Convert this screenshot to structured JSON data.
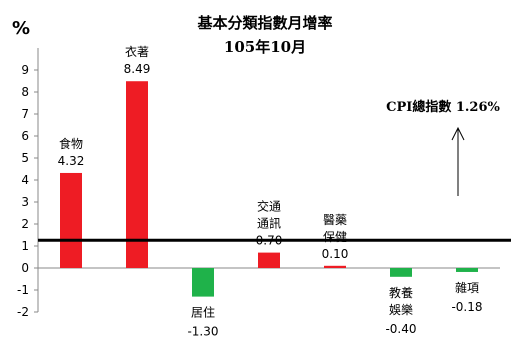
{
  "chart_data": {
    "type": "bar",
    "title": "基本分類指數月增率",
    "subtitle": "105年10月",
    "ylabel": "%",
    "ylim": [
      -2,
      10
    ],
    "yticks": [
      "-2",
      "-1",
      "0",
      "1",
      "2",
      "3",
      "4",
      "5",
      "6",
      "7",
      "8",
      "9"
    ],
    "categories": [
      {
        "lines": [
          "食物"
        ],
        "value": 4.32,
        "value_label": "4.32",
        "color": "#ee1c24"
      },
      {
        "lines": [
          "衣著"
        ],
        "value": 8.49,
        "value_label": "8.49",
        "color": "#ee1c24"
      },
      {
        "lines": [
          "居住"
        ],
        "value": -1.3,
        "value_label": "-1.30",
        "color": "#1fb24a"
      },
      {
        "lines": [
          "交通",
          "通訊"
        ],
        "value": 0.7,
        "value_label": "0.70",
        "color": "#ee1c24"
      },
      {
        "lines": [
          "醫藥",
          "保健"
        ],
        "value": 0.1,
        "value_label": "0.10",
        "color": "#ee1c24"
      },
      {
        "lines": [
          "教養",
          "娛樂"
        ],
        "value": -0.4,
        "value_label": "-0.40",
        "color": "#1fb24a"
      },
      {
        "lines": [
          "雜項"
        ],
        "value": -0.18,
        "value_label": "-0.18",
        "color": "#1fb24a"
      }
    ],
    "reference_line": {
      "value": 1.26,
      "label": "CPI總指數 1.26%"
    }
  }
}
